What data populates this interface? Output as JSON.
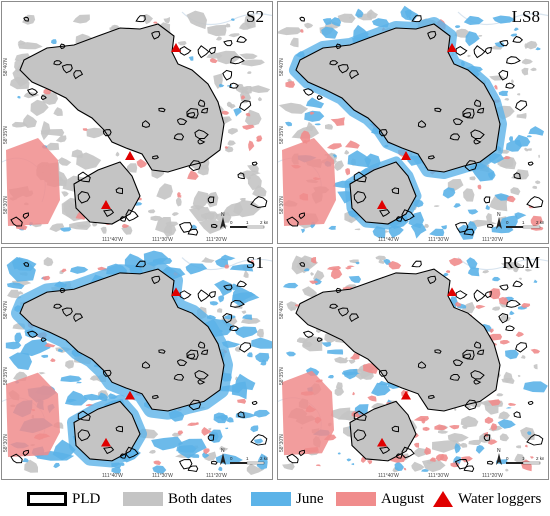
{
  "panels": [
    {
      "title": "S2",
      "mode": "S2"
    },
    {
      "title": "LS8",
      "mode": "LS8"
    },
    {
      "title": "S1",
      "mode": "S1"
    },
    {
      "title": "RCM",
      "mode": "RCM"
    }
  ],
  "axis": {
    "x_ticks": [
      "111°40'W",
      "111°30'W",
      "111°20'W"
    ],
    "y_ticks": [
      "58°40'N",
      "58°35'N",
      "58°30'N"
    ]
  },
  "scale": {
    "north": "N",
    "labels": [
      "0",
      "1",
      "2 km"
    ]
  },
  "legend": [
    {
      "label": "PLD",
      "style": "outline",
      "color": "#000000"
    },
    {
      "label": "Both dates",
      "style": "fill",
      "color": "#c4c4c4"
    },
    {
      "label": "June",
      "style": "fill",
      "color": "#5cb3e8"
    },
    {
      "label": "August",
      "style": "fill",
      "color": "#f08c8c"
    },
    {
      "label": "Water loggers",
      "style": "triangle",
      "color": "#e00000"
    }
  ],
  "colors": {
    "lake": "#c4c4c4",
    "june": "#5cb3e8",
    "august": "#f08c8c",
    "outline": "#000000",
    "logger": "#e00000"
  }
}
